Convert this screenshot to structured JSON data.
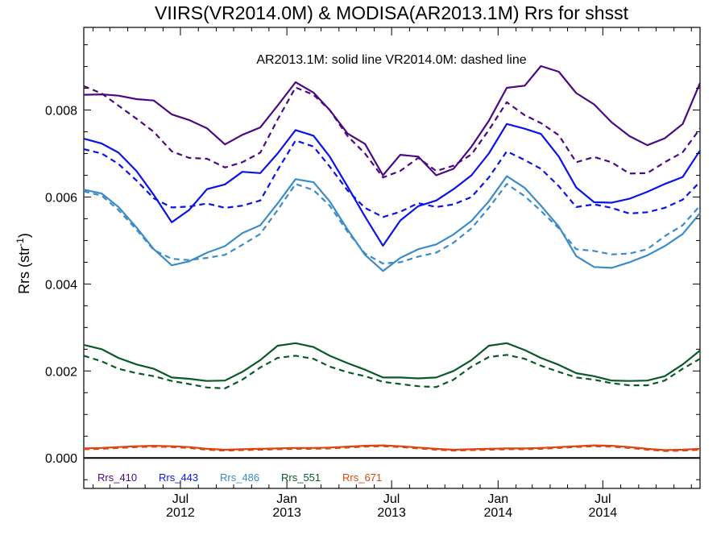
{
  "chart_data": {
    "type": "line",
    "title": "VIIRS(VR2014.0M) & MODISA(AR2013.1M)  Rrs for shsst",
    "annotation": "AR2013.1M: solid line   VR2014.0M: dashed line",
    "xlabel": "",
    "ylabel": "Rrs (str",
    "ylabel_superscript": "-1",
    "ylabel_suffix": ")",
    "ylim": [
      -0.0007,
      0.0099
    ],
    "xlim": [
      "2012-01-16",
      "2014-12-16"
    ],
    "grid": false,
    "legend_placement": "bottom-left inside plot",
    "yticks": [
      {
        "value": 0.0,
        "label": "0.000"
      },
      {
        "value": 0.002,
        "label": "0.002"
      },
      {
        "value": 0.004,
        "label": "0.004"
      },
      {
        "value": 0.006,
        "label": "0.006"
      },
      {
        "value": 0.008,
        "label": "0.008"
      }
    ],
    "xticks": [
      {
        "value": "2012-07-01",
        "label_top": "Jul",
        "label_bottom": "2012"
      },
      {
        "value": "2013-01-01",
        "label_top": "Jan",
        "label_bottom": "2013"
      },
      {
        "value": "2013-07-01",
        "label_top": "Jul",
        "label_bottom": "2013"
      },
      {
        "value": "2014-01-01",
        "label_top": "Jan",
        "label_bottom": "2014"
      },
      {
        "value": "2014-07-01",
        "label_top": "Jul",
        "label_bottom": "2014"
      }
    ],
    "x": [
      "2012-01",
      "2012-02",
      "2012-03",
      "2012-04",
      "2012-05",
      "2012-06",
      "2012-07",
      "2012-08",
      "2012-09",
      "2012-10",
      "2012-11",
      "2012-12",
      "2013-01",
      "2013-02",
      "2013-03",
      "2013-04",
      "2013-05",
      "2013-06",
      "2013-07",
      "2013-08",
      "2013-09",
      "2013-10",
      "2013-11",
      "2013-12",
      "2014-01",
      "2014-02",
      "2014-03",
      "2014-04",
      "2014-05",
      "2014-06",
      "2014-07",
      "2014-08",
      "2014-09",
      "2014-10",
      "2014-11",
      "2014-12"
    ],
    "series": [
      {
        "name": "Rrs_410",
        "sensor": "AR2013.1M",
        "style": "solid",
        "color": "#4b0a82",
        "values": [
          0.00835,
          0.00836,
          0.00833,
          0.00825,
          0.00822,
          0.0079,
          0.00777,
          0.00758,
          0.00721,
          0.00743,
          0.0076,
          0.0081,
          0.00864,
          0.0084,
          0.008,
          0.00746,
          0.00722,
          0.0065,
          0.00697,
          0.00693,
          0.0065,
          0.00665,
          0.00716,
          0.00775,
          0.00851,
          0.00856,
          0.00901,
          0.00888,
          0.00839,
          0.00813,
          0.00772,
          0.0074,
          0.00719,
          0.00735,
          0.00768,
          0.00862
        ]
      },
      {
        "name": "Rrs_410",
        "sensor": "VR2014.0M",
        "style": "dashed",
        "color": "#4b0a82",
        "values": [
          0.00855,
          0.00838,
          0.0081,
          0.0078,
          0.0075,
          0.00705,
          0.0069,
          0.00688,
          0.00668,
          0.0068,
          0.00702,
          0.00778,
          0.00852,
          0.00835,
          0.008,
          0.0074,
          0.007,
          0.00645,
          0.0066,
          0.0069,
          0.0066,
          0.00672,
          0.00698,
          0.00754,
          0.00818,
          0.00788,
          0.0077,
          0.00742,
          0.0068,
          0.00692,
          0.0068,
          0.00654,
          0.00655,
          0.0068,
          0.00703,
          0.00757
        ]
      },
      {
        "name": "Rrs_443",
        "sensor": "AR2013.1M",
        "style": "solid",
        "color": "#0a14e6",
        "values": [
          0.00734,
          0.00723,
          0.00702,
          0.0066,
          0.00605,
          0.00542,
          0.0057,
          0.00618,
          0.00629,
          0.00658,
          0.00655,
          0.007,
          0.00754,
          0.00741,
          0.00693,
          0.00624,
          0.00555,
          0.00488,
          0.00546,
          0.00579,
          0.00592,
          0.00618,
          0.0065,
          0.007,
          0.00768,
          0.00757,
          0.00745,
          0.00693,
          0.00622,
          0.00588,
          0.00587,
          0.00596,
          0.00612,
          0.0063,
          0.00646,
          0.00707
        ]
      },
      {
        "name": "Rrs_443",
        "sensor": "VR2014.0M",
        "style": "dashed",
        "color": "#0a14e6",
        "values": [
          0.0071,
          0.007,
          0.00676,
          0.00638,
          0.00597,
          0.00576,
          0.00578,
          0.00585,
          0.00575,
          0.0058,
          0.00592,
          0.00662,
          0.0073,
          0.00716,
          0.0067,
          0.00615,
          0.00575,
          0.00554,
          0.00566,
          0.00586,
          0.00577,
          0.00583,
          0.006,
          0.00645,
          0.00705,
          0.00685,
          0.00665,
          0.00625,
          0.00577,
          0.00583,
          0.00575,
          0.00562,
          0.00565,
          0.00575,
          0.00594,
          0.00635
        ]
      },
      {
        "name": "Rrs_486",
        "sensor": "AR2013.1M",
        "style": "solid",
        "color": "#3c8cc8",
        "values": [
          0.00617,
          0.00608,
          0.00577,
          0.0053,
          0.0048,
          0.00443,
          0.00452,
          0.00472,
          0.00487,
          0.00517,
          0.00535,
          0.00585,
          0.00641,
          0.00634,
          0.0059,
          0.00525,
          0.00467,
          0.0043,
          0.0046,
          0.0048,
          0.00491,
          0.00514,
          0.00545,
          0.0059,
          0.00648,
          0.00621,
          0.0058,
          0.00532,
          0.00464,
          0.00439,
          0.00437,
          0.0045,
          0.00466,
          0.00487,
          0.00515,
          0.00563
        ]
      },
      {
        "name": "Rrs_486",
        "sensor": "VR2014.0M",
        "style": "dashed",
        "color": "#3c8cc8",
        "values": [
          0.00613,
          0.00603,
          0.0057,
          0.00525,
          0.00478,
          0.00458,
          0.00455,
          0.0046,
          0.00467,
          0.0049,
          0.00515,
          0.0057,
          0.0063,
          0.00616,
          0.0058,
          0.0052,
          0.0047,
          0.00447,
          0.0045,
          0.00463,
          0.00472,
          0.00495,
          0.00528,
          0.00575,
          0.0063,
          0.00602,
          0.00568,
          0.00528,
          0.0048,
          0.00476,
          0.00468,
          0.0047,
          0.0048,
          0.0051,
          0.00535,
          0.0058
        ]
      },
      {
        "name": "Rrs_551",
        "sensor": "AR2013.1M",
        "style": "solid",
        "color": "#0a5a28",
        "values": [
          0.0026,
          0.0025,
          0.0023,
          0.00215,
          0.00205,
          0.00185,
          0.00182,
          0.00177,
          0.00178,
          0.00198,
          0.00225,
          0.00258,
          0.00264,
          0.00255,
          0.00235,
          0.00218,
          0.00203,
          0.00185,
          0.00185,
          0.00183,
          0.00185,
          0.002,
          0.00225,
          0.00258,
          0.00264,
          0.00248,
          0.0023,
          0.00214,
          0.00195,
          0.00188,
          0.00178,
          0.00177,
          0.00178,
          0.00188,
          0.00215,
          0.00247
        ]
      },
      {
        "name": "Rrs_551",
        "sensor": "VR2014.0M",
        "style": "dashed",
        "color": "#0a5a28",
        "values": [
          0.00235,
          0.00222,
          0.00205,
          0.00195,
          0.00188,
          0.00177,
          0.0017,
          0.00162,
          0.0016,
          0.0018,
          0.00208,
          0.0023,
          0.00235,
          0.00228,
          0.0021,
          0.00197,
          0.00188,
          0.00175,
          0.0017,
          0.00165,
          0.00163,
          0.0018,
          0.0021,
          0.00232,
          0.00237,
          0.00228,
          0.00212,
          0.00198,
          0.00185,
          0.0018,
          0.00172,
          0.00167,
          0.00167,
          0.00178,
          0.00205,
          0.00228
        ]
      },
      {
        "name": "Rrs_671",
        "sensor": "AR2013.1M",
        "style": "solid",
        "color": "#dc4614",
        "values": [
          0.00022,
          0.00023,
          0.00025,
          0.00027,
          0.00028,
          0.00027,
          0.00025,
          0.00021,
          0.00019,
          0.0002,
          0.00021,
          0.00022,
          0.00023,
          0.00023,
          0.00024,
          0.00026,
          0.00028,
          0.00029,
          0.00027,
          0.00024,
          0.00021,
          0.00019,
          0.0002,
          0.00021,
          0.00022,
          0.00022,
          0.00023,
          0.00025,
          0.00027,
          0.00029,
          0.00028,
          0.00025,
          0.00021,
          0.00018,
          0.00019,
          0.00021
        ]
      },
      {
        "name": "Rrs_671",
        "sensor": "VR2014.0M",
        "style": "dashed",
        "color": "#dc4614",
        "values": [
          0.0002,
          0.00021,
          0.00023,
          0.00025,
          0.00026,
          0.00025,
          0.00023,
          0.00019,
          0.00017,
          0.00018,
          0.00019,
          0.0002,
          0.00021,
          0.00021,
          0.00022,
          0.00024,
          0.00026,
          0.00027,
          0.00025,
          0.00022,
          0.00019,
          0.00017,
          0.00018,
          0.00019,
          0.0002,
          0.0002,
          0.00021,
          0.00023,
          0.00025,
          0.00027,
          0.00026,
          0.00023,
          0.00019,
          0.00016,
          0.00017,
          0.00019
        ]
      }
    ],
    "legend": [
      {
        "label": "Rrs_410",
        "color": "#4b0a82"
      },
      {
        "label": "Rrs_443",
        "color": "#0a14e6"
      },
      {
        "label": "Rrs_486",
        "color": "#3c8cc8"
      },
      {
        "label": "Rrs_551",
        "color": "#0a5a28"
      },
      {
        "label": "Rrs_671",
        "color": "#dc4614"
      }
    ],
    "zero_line": true
  }
}
